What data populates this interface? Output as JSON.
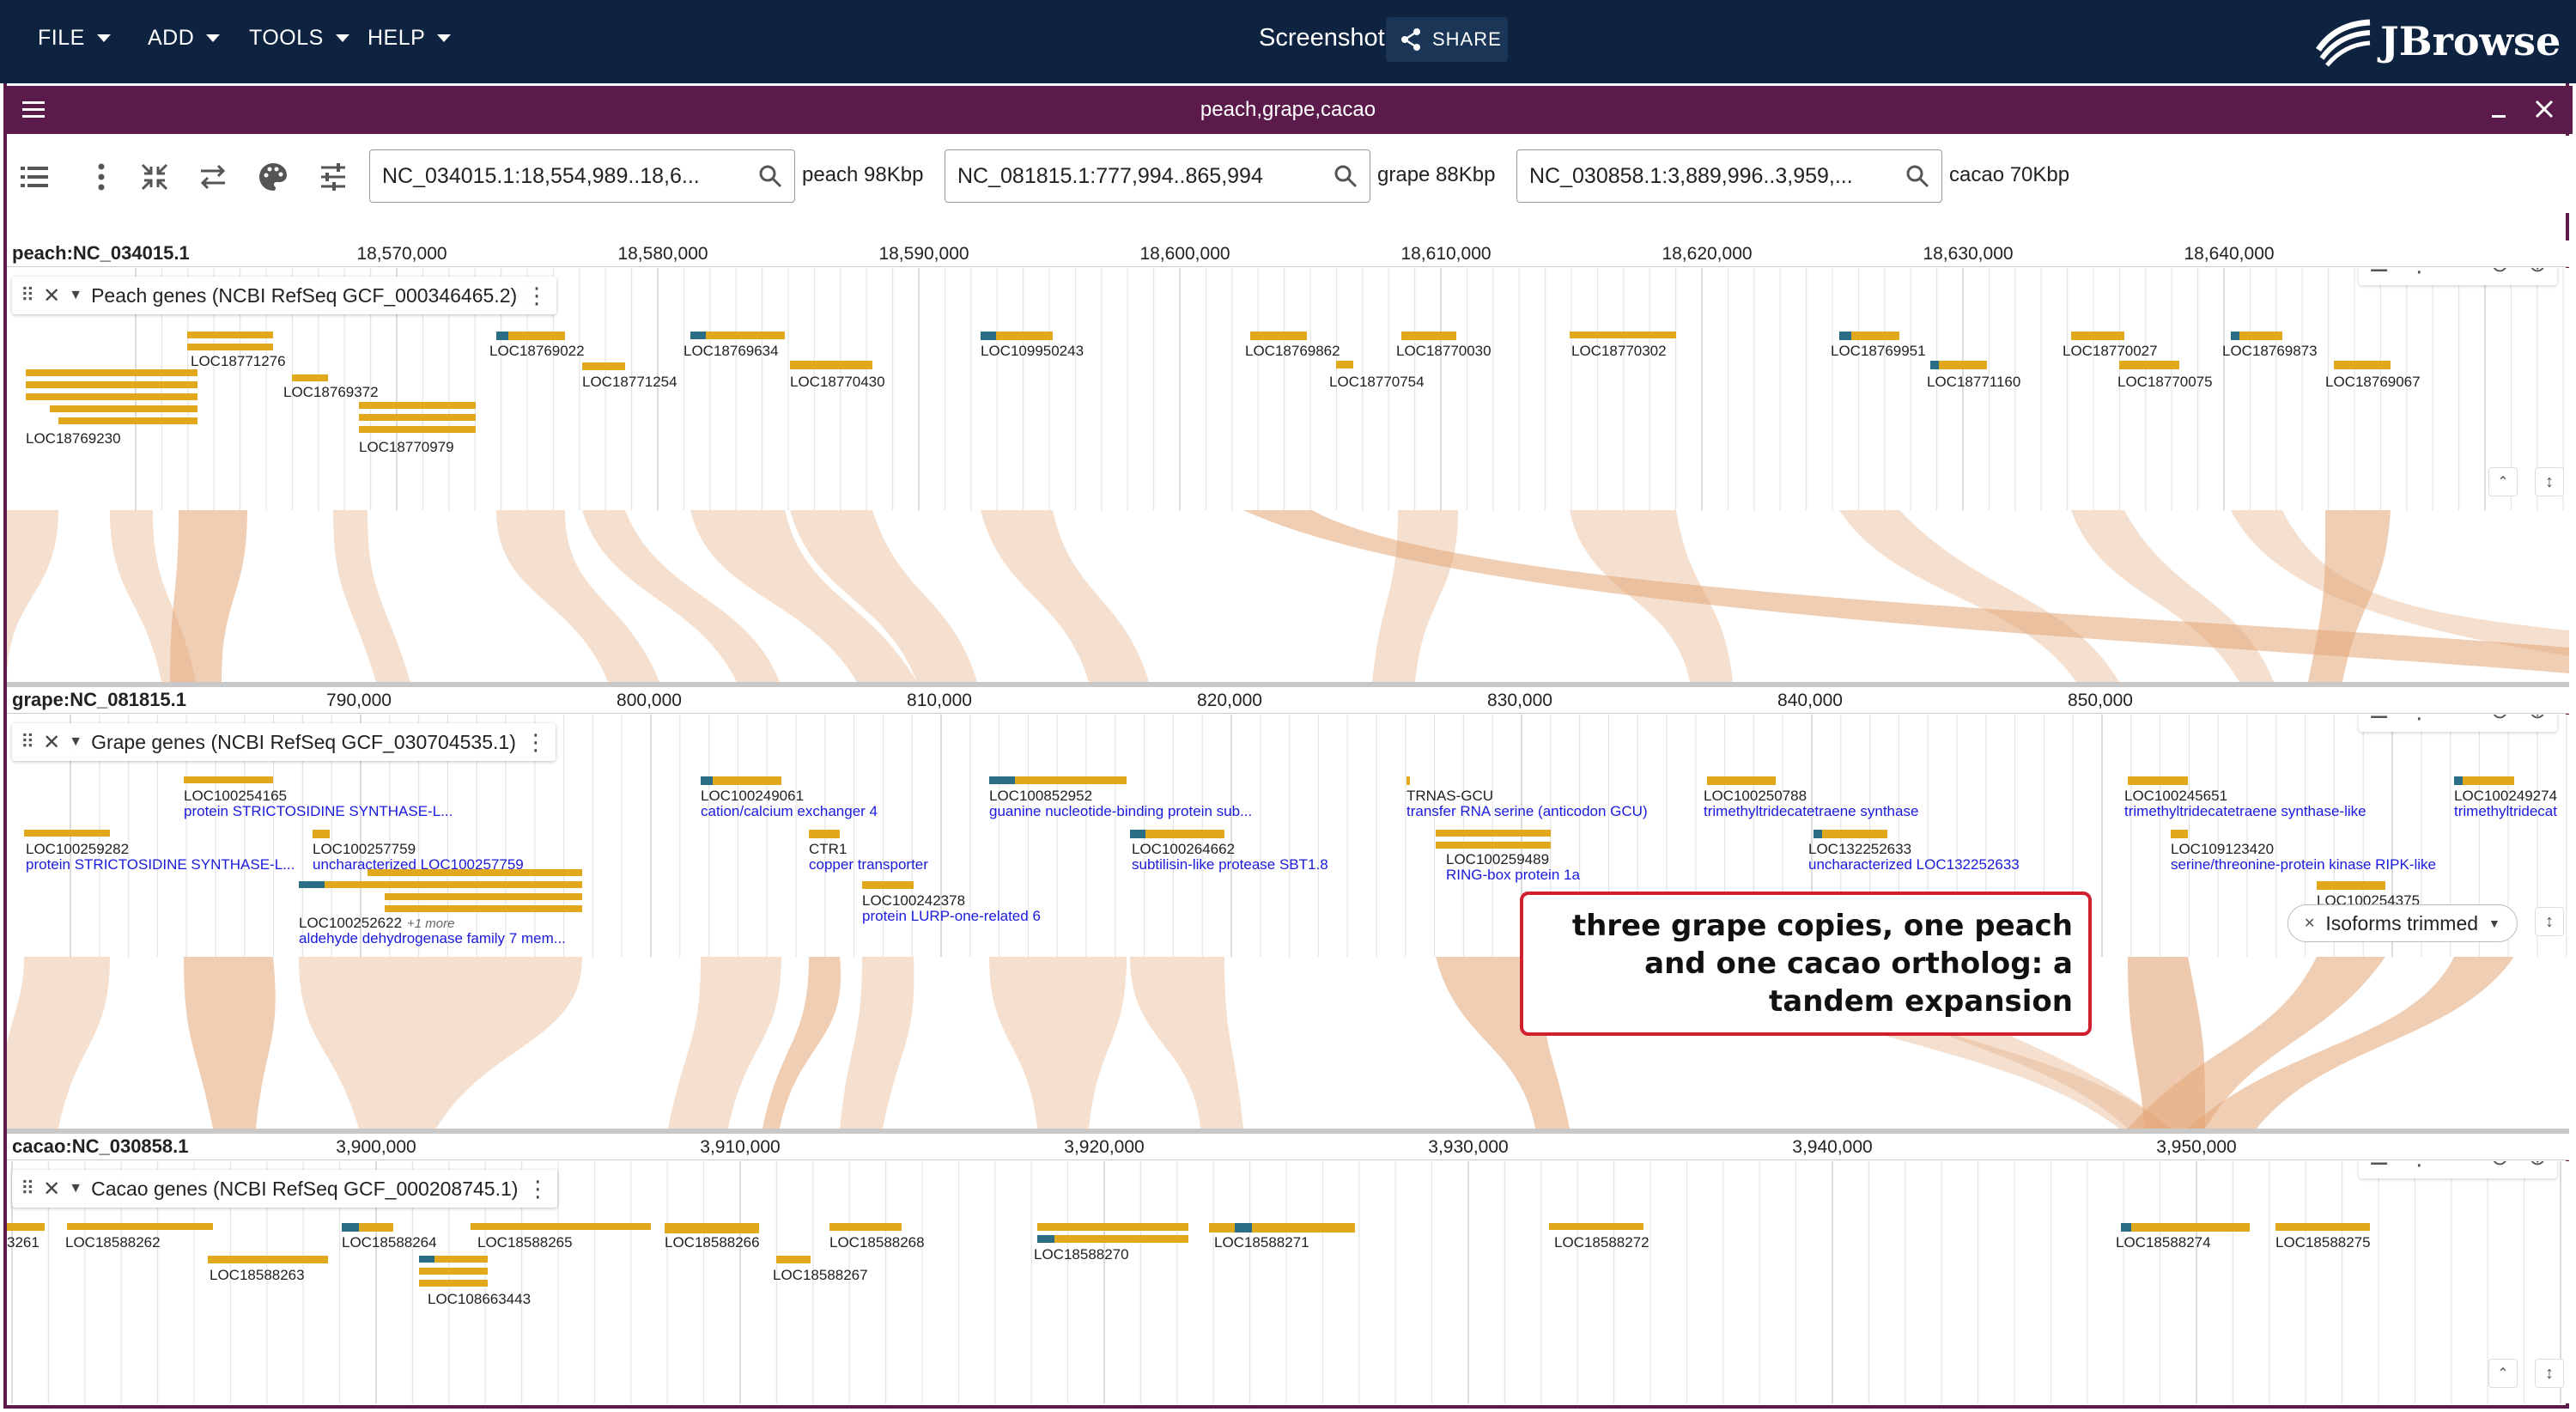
{
  "appbar": {
    "menus": [
      "FILE",
      "ADD",
      "TOOLS",
      "HELP"
    ],
    "title": "Screenshot",
    "share_label": "SHARE",
    "logo_text": "JBrowse"
  },
  "view": {
    "title": "peach,grape,cacao",
    "locations": [
      {
        "value": "NC_034015.1:18,554,989..18,6...",
        "label": "peach 98Kbp"
      },
      {
        "value": "NC_081815.1:777,994..865,994",
        "label": "grape 88Kbp"
      },
      {
        "value": "NC_030858.1:3,889,996..3,959,...",
        "label": "cacao 70Kbp"
      }
    ]
  },
  "rows": [
    {
      "refname": "peach:NC_034015.1",
      "ticks": [
        "18,570,000",
        "18,580,000",
        "18,590,000",
        "18,600,000",
        "18,610,000",
        "18,620,000",
        "18,630,000",
        "18,640,000"
      ],
      "track_name": "Peach genes (NCBI RefSeq GCF_000346465.2)",
      "genes": [
        "LOC18771276",
        "LOC18769372",
        "LOC18769230",
        "LOC18770979",
        "LOC18769022",
        "LOC18771254",
        "LOC18769634",
        "LOC18770430",
        "LOC109950243",
        "LOC18769862",
        "LOC18770754",
        "LOC18770030",
        "LOC18770302",
        "LOC18769951",
        "LOC18771160",
        "LOC18770027",
        "LOC18770075",
        "LOC18769873",
        "LOC18769067"
      ]
    },
    {
      "refname": "grape:NC_081815.1",
      "ticks": [
        "790,000",
        "800,000",
        "810,000",
        "820,000",
        "830,000",
        "840,000",
        "850,000"
      ],
      "track_name": "Grape genes (NCBI RefSeq GCF_030704535.1)",
      "genes": [
        {
          "name": "LOC100254165",
          "desc": "protein STRICTOSIDINE SYNTHASE-L..."
        },
        {
          "name": "LOC100259282",
          "desc": "protein STRICTOSIDINE SYNTHASE-L..."
        },
        {
          "name": "LOC100257759",
          "desc": "uncharacterized LOC100257759"
        },
        {
          "name": "LOC100252622",
          "desc": "aldehyde dehydrogenase family 7 mem..."
        },
        {
          "name": "LOC100249061",
          "desc": "cation/calcium exchanger 4"
        },
        {
          "name": "CTR1",
          "desc": "copper transporter"
        },
        {
          "name": "LOC100242378",
          "desc": "protein LURP-one-related 6"
        },
        {
          "name": "LOC100852952",
          "desc": "guanine nucleotide-binding protein sub..."
        },
        {
          "name": "LOC100264662",
          "desc": "subtilisin-like protease SBT1.8"
        },
        {
          "name": "TRNAS-GCU",
          "desc": "transfer RNA serine (anticodon GCU)"
        },
        {
          "name": "LOC100259489",
          "desc": "RING-box protein 1a"
        },
        {
          "name": "LOC100250788",
          "desc": "trimethyltridecatetraene synthase"
        },
        {
          "name": "LOC132252633",
          "desc": "uncharacterized LOC132252633"
        },
        {
          "name": "LOC100245651",
          "desc": "trimethyltridecatetraene synthase-like"
        },
        {
          "name": "LOC109123420",
          "desc": "serine/threonine-protein kinase RIPK-like"
        },
        {
          "name": "LOC100249274",
          "desc": "trimethyltridecat"
        },
        {
          "name": "LOC100254375",
          "desc": ""
        }
      ],
      "more_label": "+1 more"
    },
    {
      "refname": "cacao:NC_030858.1",
      "ticks": [
        "3,900,000",
        "3,910,000",
        "3,920,000",
        "3,930,000",
        "3,940,000",
        "3,950,000"
      ],
      "track_name": "Cacao genes (NCBI RefSeq GCF_000208745.1)",
      "genes": [
        "3261",
        "LOC18588262",
        "LOC18588263",
        "LOC18588264",
        "LOC108663443",
        "LOC18588265",
        "LOC18588266",
        "LOC18588267",
        "LOC18588268",
        "LOC18588270",
        "LOC18588271",
        "LOC18588272",
        "LOC18588274",
        "LOC18588275"
      ]
    }
  ],
  "annotation": "three grape copies, one peach and one cacao ortholog: a tandem expansion",
  "isoform_chip": "Isoforms trimmed",
  "colors": {
    "appbar": "#0d233f",
    "view_header": "#5a1a4a",
    "exon": "#e0a81c",
    "utr": "#2c6d86",
    "synteny": "#e3a577",
    "annotation_border": "#d0202e"
  },
  "icons": [
    "chevron-down-icon",
    "share-icon",
    "hamburger-icon",
    "minimize-icon",
    "close-icon",
    "track-list-icon",
    "kebab-icon",
    "collapse-icon",
    "swap-icon",
    "palette-icon",
    "tune-icon",
    "search-icon",
    "zoom-out-icon",
    "zoom-in-icon",
    "drag-handle-icon",
    "expand-vertical-icon"
  ]
}
